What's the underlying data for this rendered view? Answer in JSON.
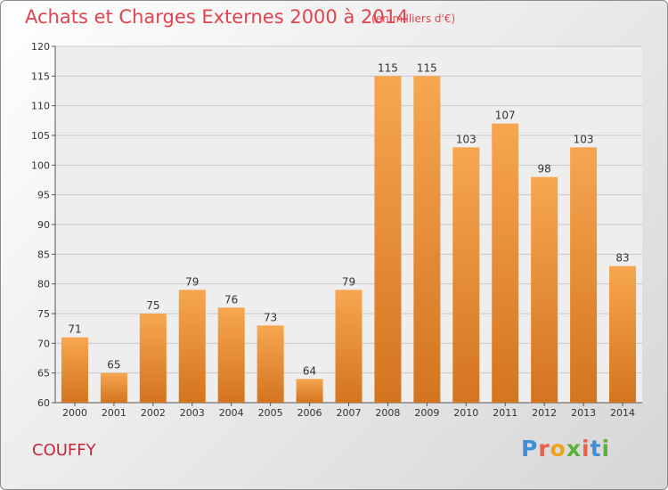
{
  "header": {
    "title": "Achats et Charges Externes 2000 à 2014",
    "subtitle": "(en milliers d'€)"
  },
  "footer": {
    "commune": "COUFFY",
    "logo_text": "Proxiti"
  },
  "colors": {
    "title": "#e0444e",
    "commune": "#c2273a",
    "bar_light": "#f7a650",
    "bar_dark": "#d4741e",
    "logo_letters": [
      "#3d8fd8",
      "#e8604a",
      "#f2a21a",
      "#5bb23a",
      "#e8604a",
      "#3d8fd8",
      "#5bb23a"
    ]
  },
  "chart_data": {
    "type": "bar",
    "title": "Achats et Charges Externes 2000 à 2014",
    "subtitle": "(en milliers d'€)",
    "categories": [
      "2000",
      "2001",
      "2002",
      "2003",
      "2004",
      "2005",
      "2006",
      "2007",
      "2008",
      "2009",
      "2010",
      "2011",
      "2012",
      "2013",
      "2014"
    ],
    "values": [
      71,
      65,
      75,
      79,
      76,
      73,
      64,
      79,
      115,
      115,
      103,
      107,
      98,
      103,
      83
    ],
    "ylim": [
      60,
      120
    ],
    "yticks": [
      60,
      65,
      70,
      75,
      80,
      85,
      90,
      95,
      100,
      105,
      110,
      115,
      120
    ],
    "grid": true,
    "xlabel": "",
    "ylabel": ""
  }
}
